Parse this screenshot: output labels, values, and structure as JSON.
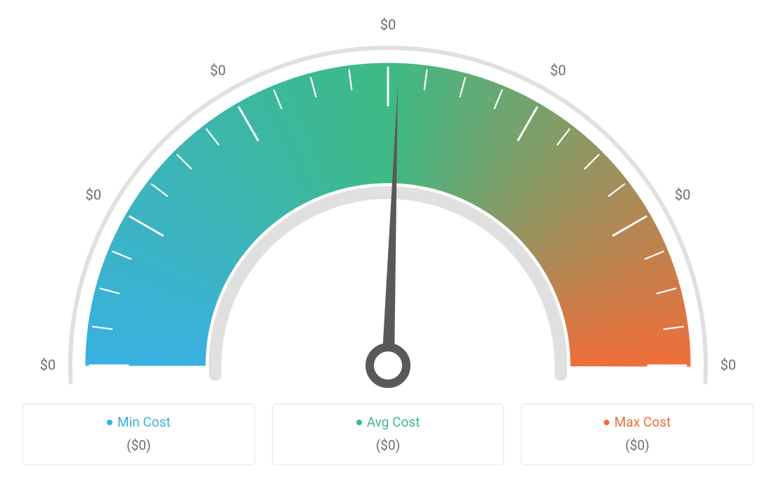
{
  "gauge": {
    "type": "gauge",
    "tick_labels": [
      "$0",
      "$0",
      "$0",
      "$0",
      "$0",
      "$0",
      "$0"
    ],
    "tick_label_color": "#6d6d6d",
    "tick_label_fontsize": 20,
    "colors": {
      "min": "#3ab0e2",
      "avg": "#3dba85",
      "max": "#ee6e3a",
      "outer_ring": "#e0e0e0",
      "inner_ring": "#e0e0e0",
      "needle": "#595959",
      "tick_major": "#ffffff",
      "tick_minor": "#ffffff",
      "background": "#ffffff"
    },
    "arc": {
      "start_deg": 180,
      "end_deg": 0,
      "outer_radius": 430,
      "inner_radius": 260,
      "ring_outer_radius": 452,
      "ring_outer_width": 6,
      "ring_inner_radius": 246,
      "ring_inner_width": 18
    },
    "needle_position_deg": 88,
    "major_tick_count": 7,
    "minor_per_major": 3
  },
  "legend": {
    "cards": [
      {
        "dot_color": "#3ab0e2",
        "label": "Min Cost",
        "label_color": "#3ab0e2",
        "value": "($0)"
      },
      {
        "dot_color": "#3dba85",
        "label": "Avg Cost",
        "label_color": "#3dba85",
        "value": "($0)"
      },
      {
        "dot_color": "#ee6e3a",
        "label": "Max Cost",
        "label_color": "#ee6e3a",
        "value": "($0)"
      }
    ],
    "value_color": "#6d6d6d",
    "border_color": "#e5e5e5",
    "border_radius": 6
  }
}
